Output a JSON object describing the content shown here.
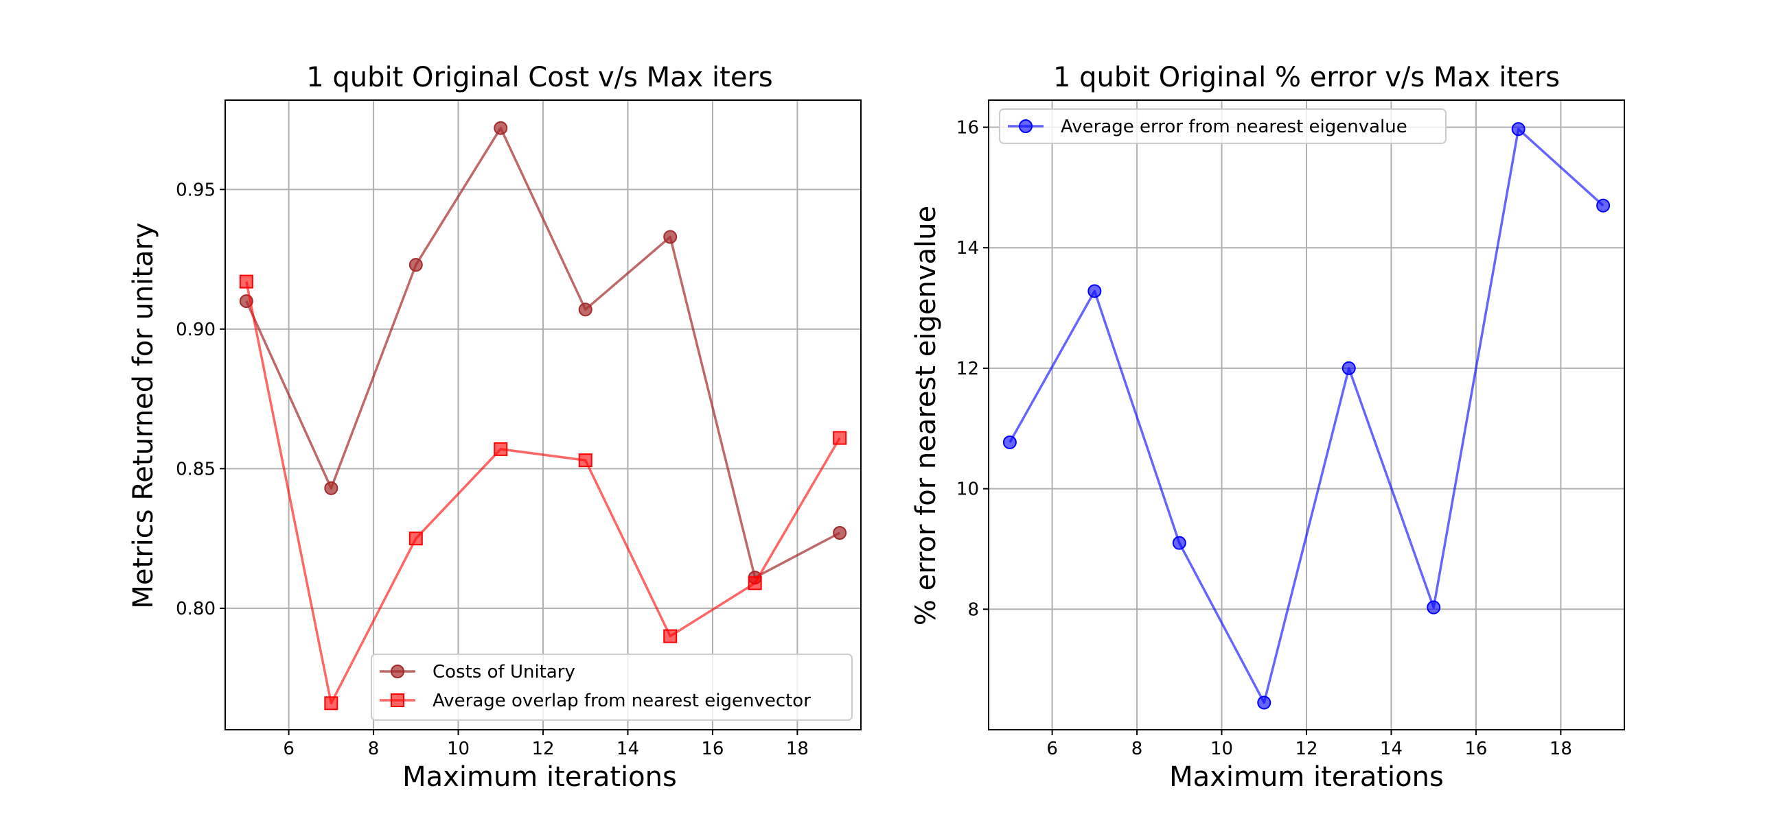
{
  "chart_data": [
    {
      "type": "line",
      "title": "1 qubit Original Cost v/s Max iters",
      "xlabel": "Maximum iterations",
      "ylabel": "Metrics Returned for unitary",
      "x": [
        5,
        7,
        9,
        11,
        13,
        15,
        17,
        19
      ],
      "xlim": [
        4.5,
        19.5
      ],
      "ylim": [
        0.7565,
        0.982
      ],
      "xticks": [
        6,
        8,
        10,
        12,
        14,
        16,
        18
      ],
      "yticks": [
        0.8,
        0.85,
        0.9,
        0.95
      ],
      "xtick_labels": [
        "6",
        "8",
        "10",
        "12",
        "14",
        "16",
        "18"
      ],
      "ytick_labels": [
        "0.80",
        "0.85",
        "0.90",
        "0.95"
      ],
      "grid": true,
      "legend_position": "lower-right",
      "series": [
        {
          "name": "Costs of Unitary",
          "values": [
            0.91,
            0.843,
            0.923,
            0.972,
            0.907,
            0.933,
            0.811,
            0.827
          ],
          "color": "#A52A2A",
          "marker": "circle"
        },
        {
          "name": "Average overlap from nearest eigenvector",
          "values": [
            0.917,
            0.766,
            0.825,
            0.857,
            0.853,
            0.79,
            0.809,
            0.861
          ],
          "color": "#FF0000",
          "marker": "square"
        }
      ]
    },
    {
      "type": "line",
      "title": "1 qubit Original % error v/s Max iters",
      "xlabel": "Maximum iterations",
      "ylabel": "% error for nearest eigenvalue",
      "x": [
        5,
        7,
        9,
        11,
        13,
        15,
        17,
        19
      ],
      "xlim": [
        4.5,
        19.5
      ],
      "ylim": [
        6.0,
        16.45
      ],
      "xticks": [
        6,
        8,
        10,
        12,
        14,
        16,
        18
      ],
      "yticks": [
        8,
        10,
        12,
        14,
        16
      ],
      "xtick_labels": [
        "6",
        "8",
        "10",
        "12",
        "14",
        "16",
        "18"
      ],
      "ytick_labels": [
        "8",
        "10",
        "12",
        "14",
        "16"
      ],
      "grid": true,
      "legend_position": "upper-left",
      "series": [
        {
          "name": "Average error from nearest eigenvalue",
          "values": [
            10.77,
            13.28,
            9.1,
            6.45,
            12.0,
            8.03,
            15.97,
            14.7
          ],
          "color": "#0000FF",
          "marker": "circle"
        }
      ]
    }
  ]
}
